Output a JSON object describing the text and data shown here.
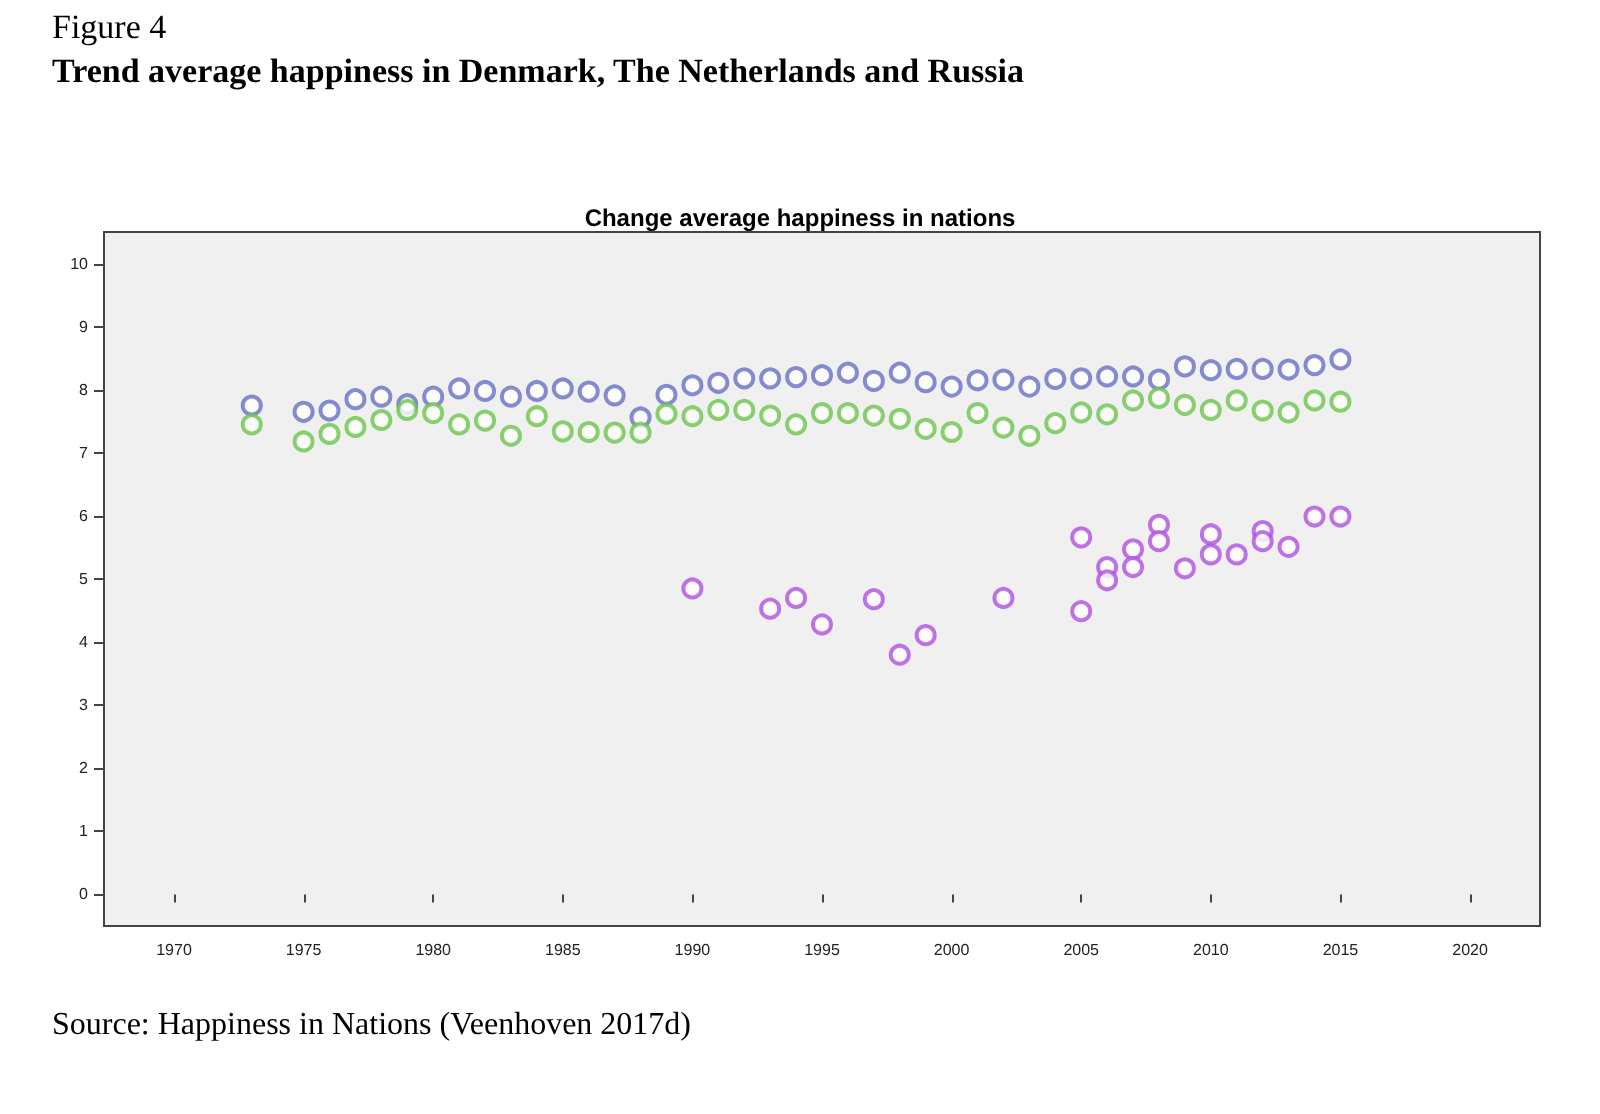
{
  "chart_data": {
    "type": "scatter",
    "title": "Trend average happiness in Denmark, The Netherlands and Russia",
    "subtitle": "Change average happiness in nations",
    "annotations": [
      "Figure 4",
      "Source: Happiness in Nations (Veenhoven 2017d)"
    ],
    "xlim": [
      1967.3,
      2022.7
    ],
    "xticks": [
      1970,
      1975,
      1980,
      1985,
      1990,
      1995,
      2000,
      2005,
      2010,
      2015,
      2020
    ],
    "ylim": [
      -0.5,
      10.5
    ],
    "yticks": [
      0,
      1,
      2,
      3,
      4,
      5,
      6,
      7,
      8,
      9,
      10
    ],
    "grid": false,
    "marker": "circle",
    "series": [
      {
        "color": "#6670c4",
        "x": [
          1973,
          1975,
          1976,
          1977,
          1978,
          1979,
          1980,
          1981,
          1982,
          1983,
          1984,
          1985,
          1986,
          1987,
          1988,
          1989,
          1990,
          1991,
          1992,
          1993,
          1994,
          1995,
          1996,
          1997,
          1998,
          1999,
          2000,
          2001,
          2002,
          2003,
          2004,
          2005,
          2006,
          2007,
          2008,
          2009,
          2010,
          2011,
          2012,
          2013,
          2014,
          2015
        ],
        "values": [
          7.75,
          7.65,
          7.67,
          7.85,
          7.89,
          7.77,
          7.89,
          8.02,
          7.98,
          7.89,
          7.98,
          8.02,
          7.97,
          7.91,
          7.56,
          7.92,
          8.07,
          8.11,
          8.18,
          8.18,
          8.2,
          8.23,
          8.27,
          8.14,
          8.27,
          8.12,
          8.05,
          8.15,
          8.16,
          8.05,
          8.17,
          8.18,
          8.21,
          8.21,
          8.16,
          8.37,
          8.31,
          8.33,
          8.33,
          8.32,
          8.39,
          8.48
        ]
      },
      {
        "color": "#6cc44c",
        "x": [
          1973,
          1975,
          1976,
          1977,
          1978,
          1979,
          1980,
          1981,
          1982,
          1983,
          1984,
          1985,
          1986,
          1987,
          1988,
          1989,
          1990,
          1991,
          1992,
          1993,
          1994,
          1995,
          1996,
          1997,
          1998,
          1999,
          2000,
          2001,
          2002,
          2003,
          2004,
          2005,
          2006,
          2007,
          2008,
          2009,
          2010,
          2011,
          2012,
          2013,
          2014,
          2015
        ],
        "values": [
          7.45,
          7.18,
          7.3,
          7.41,
          7.52,
          7.68,
          7.63,
          7.45,
          7.51,
          7.27,
          7.58,
          7.34,
          7.33,
          7.32,
          7.32,
          7.62,
          7.58,
          7.68,
          7.68,
          7.59,
          7.45,
          7.63,
          7.63,
          7.59,
          7.54,
          7.38,
          7.33,
          7.63,
          7.4,
          7.27,
          7.47,
          7.64,
          7.61,
          7.83,
          7.87,
          7.76,
          7.68,
          7.83,
          7.67,
          7.64,
          7.83,
          7.81
        ]
      },
      {
        "color": "#b050e0",
        "x": [
          1990,
          1993,
          1994,
          1995,
          1997,
          1998,
          1999,
          2002,
          2005,
          2005,
          2006,
          2006,
          2007,
          2007,
          2008,
          2008,
          2009,
          2010,
          2010,
          2011,
          2012,
          2012,
          2013,
          2014,
          2015
        ],
        "values": [
          4.85,
          4.53,
          4.7,
          4.28,
          4.68,
          3.8,
          4.11,
          4.7,
          5.66,
          4.49,
          5.19,
          4.98,
          5.47,
          5.19,
          5.86,
          5.6,
          5.17,
          5.71,
          5.39,
          5.39,
          5.76,
          5.6,
          5.51,
          5.99,
          5.99
        ]
      }
    ]
  }
}
